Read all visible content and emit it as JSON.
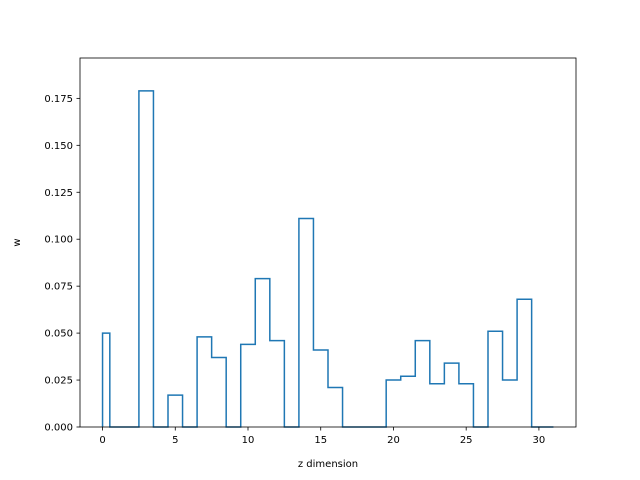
{
  "chart_data": {
    "type": "step",
    "title": "",
    "xlabel": "z dimension",
    "ylabel": "w",
    "xlim": [
      -1.55,
      32.55
    ],
    "ylim": [
      0,
      0.1965
    ],
    "grid": false,
    "legend": "none",
    "line_color": "#1f77b4",
    "xticks": [
      0,
      5,
      10,
      15,
      20,
      25,
      30
    ],
    "xtick_labels": [
      "0",
      "5",
      "10",
      "15",
      "20",
      "25",
      "30"
    ],
    "yticks": [
      0.0,
      0.025,
      0.05,
      0.075,
      0.1,
      0.125,
      0.15,
      0.175
    ],
    "ytick_labels": [
      "0.000",
      "0.025",
      "0.050",
      "0.075",
      "0.100",
      "0.125",
      "0.150",
      "0.175"
    ],
    "bin_edges": [
      0,
      0.5,
      1.5,
      2.5,
      3.5,
      4.5,
      5.5,
      6.5,
      7.5,
      8.5,
      9.5,
      10.5,
      11.5,
      12.5,
      13.5,
      14.5,
      15.5,
      16.5,
      17.5,
      18.5,
      19.5,
      20.5,
      21.5,
      22.5,
      23.5,
      24.5,
      25.5,
      26.5,
      27.5,
      28.5,
      29.5,
      31
    ],
    "values": [
      0.05,
      0.0,
      0.0,
      0.179,
      0.0,
      0.017,
      0.0,
      0.048,
      0.037,
      0.0,
      0.044,
      0.079,
      0.046,
      0.0,
      0.111,
      0.041,
      0.021,
      0.0,
      0.0,
      0.0,
      0.025,
      0.027,
      0.046,
      0.023,
      0.034,
      0.023,
      0.0,
      0.051,
      0.025,
      0.068,
      0.0
    ]
  }
}
